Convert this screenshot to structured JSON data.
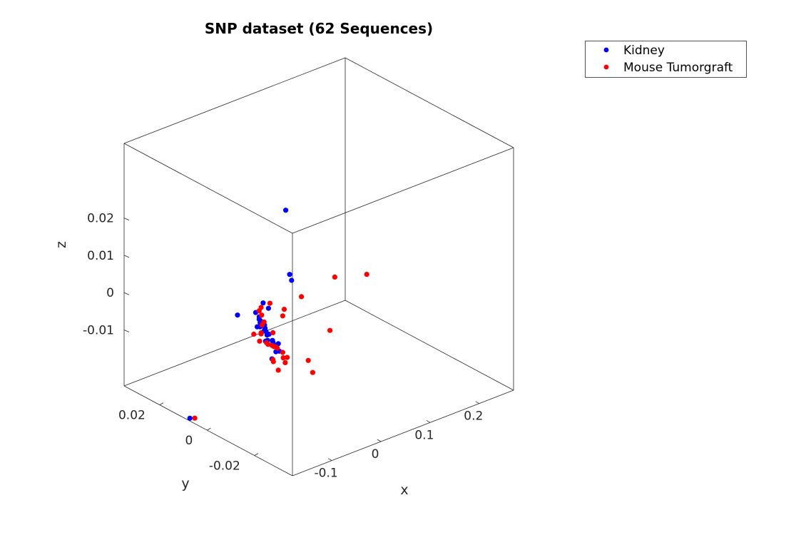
{
  "chart_data": {
    "type": "scatter",
    "title": "SNP dataset (62 Sequences)",
    "xlabel": "x",
    "ylabel": "y",
    "zlabel": "z",
    "xlim": [
      -0.18,
      0.27
    ],
    "ylim": [
      -0.036,
      0.035
    ],
    "zlim": [
      -0.025,
      0.04
    ],
    "xticks": [
      {
        "v": -0.1,
        "label": "-0.1"
      },
      {
        "v": 0,
        "label": "0"
      },
      {
        "v": 0.1,
        "label": "0.1"
      },
      {
        "v": 0.2,
        "label": "0.2"
      }
    ],
    "yticks": [
      {
        "v": 0.02,
        "label": "0.02"
      },
      {
        "v": 0,
        "label": "0"
      },
      {
        "v": -0.02,
        "label": "-0.02"
      }
    ],
    "zticks": [
      {
        "v": 0.02,
        "label": "0.02"
      },
      {
        "v": 0.01,
        "label": "0.01"
      },
      {
        "v": 0,
        "label": "0"
      },
      {
        "v": -0.01,
        "label": "-0.01"
      }
    ],
    "grid": false,
    "legend_position": "top-right",
    "series": [
      {
        "name": "Kidney",
        "color": "#0000ff",
        "points": [
          [
            -0.02,
            0.0,
            0.0258
          ],
          [
            -0.012,
            0.0,
            0.0082
          ],
          [
            -0.008,
            0.0,
            0.0064
          ],
          [
            -0.118,
            0.0,
            0.0027
          ],
          [
            -0.066,
            0.0,
            0.0033
          ],
          [
            -0.081,
            0.0,
            0.0015
          ],
          [
            -0.055,
            0.0,
            0.0013
          ],
          [
            -0.074,
            0.0,
            0.0
          ],
          [
            -0.074,
            0.0,
            -0.0007
          ],
          [
            -0.071,
            0.0,
            -0.0013
          ],
          [
            -0.072,
            0.0,
            -0.0017
          ],
          [
            -0.078,
            0.0,
            -0.0025
          ],
          [
            -0.072,
            0.0,
            -0.0028
          ],
          [
            -0.063,
            0.0,
            -0.0028
          ],
          [
            -0.062,
            0.0,
            -0.0037
          ],
          [
            -0.064,
            0.0,
            -0.0043
          ],
          [
            -0.06,
            0.0,
            -0.0047
          ],
          [
            -0.058,
            0.0,
            -0.0057
          ],
          [
            -0.054,
            0.0,
            -0.0057
          ],
          [
            -0.061,
            0.0,
            -0.0072
          ],
          [
            -0.057,
            0.0,
            -0.0072
          ],
          [
            -0.047,
            0.0,
            -0.0077
          ],
          [
            -0.046,
            0.0,
            -0.0082
          ],
          [
            -0.045,
            0.0,
            -0.0087
          ],
          [
            -0.035,
            0.0,
            -0.0092
          ],
          [
            -0.04,
            0.0,
            -0.0111
          ],
          [
            -0.033,
            0.0,
            -0.0113
          ],
          [
            -0.048,
            0.0,
            -0.0126
          ],
          [
            -0.215,
            0.0,
            -0.02
          ]
        ]
      },
      {
        "name": "Mouse Tumorgraft",
        "color": "#ff0000",
        "points": [
          [
            0.08,
            0.0,
            0.0028
          ],
          [
            0.012,
            0.0,
            0.001
          ],
          [
            -0.052,
            0.0,
            0.0025
          ],
          [
            -0.07,
            0.0,
            0.0023
          ],
          [
            -0.074,
            0.0,
            0.0016
          ],
          [
            -0.069,
            0.0,
            0.0002
          ],
          [
            -0.023,
            0.0,
            -0.0006
          ],
          [
            -0.026,
            0.0,
            -0.0022
          ],
          [
            -0.064,
            0.0,
            -0.0019
          ],
          [
            -0.068,
            0.0,
            -0.0025
          ],
          [
            -0.085,
            0.0,
            -0.0041
          ],
          [
            -0.07,
            0.0,
            -0.0045
          ],
          [
            -0.046,
            0.0,
            -0.0057
          ],
          [
            -0.073,
            0.0,
            -0.0066
          ],
          [
            -0.059,
            0.0,
            -0.0077
          ],
          [
            -0.056,
            0.0,
            -0.0083
          ],
          [
            -0.048,
            0.0,
            -0.009
          ],
          [
            -0.044,
            0.0,
            -0.0095
          ],
          [
            -0.037,
            0.0,
            -0.0103
          ],
          [
            -0.026,
            0.0,
            -0.012
          ],
          [
            -0.046,
            0.0,
            -0.0129
          ],
          [
            -0.045,
            0.0,
            -0.0135
          ],
          [
            -0.025,
            0.0,
            -0.0135
          ],
          [
            -0.017,
            0.0,
            -0.0138
          ],
          [
            -0.021,
            0.0,
            -0.015
          ],
          [
            -0.035,
            0.0,
            -0.0163
          ],
          [
            0.026,
            0.0,
            -0.0168
          ],
          [
            0.035,
            0.0,
            -0.0205
          ],
          [
            0.07,
            0.0,
            -0.011
          ],
          [
            -0.205,
            0.0,
            -0.0205
          ],
          [
            -0.07,
            0.0,
            -0.0048
          ],
          [
            -0.04,
            0.0,
            -0.0098
          ],
          [
            0.145,
            0.0,
            0.0002
          ]
        ]
      }
    ]
  }
}
